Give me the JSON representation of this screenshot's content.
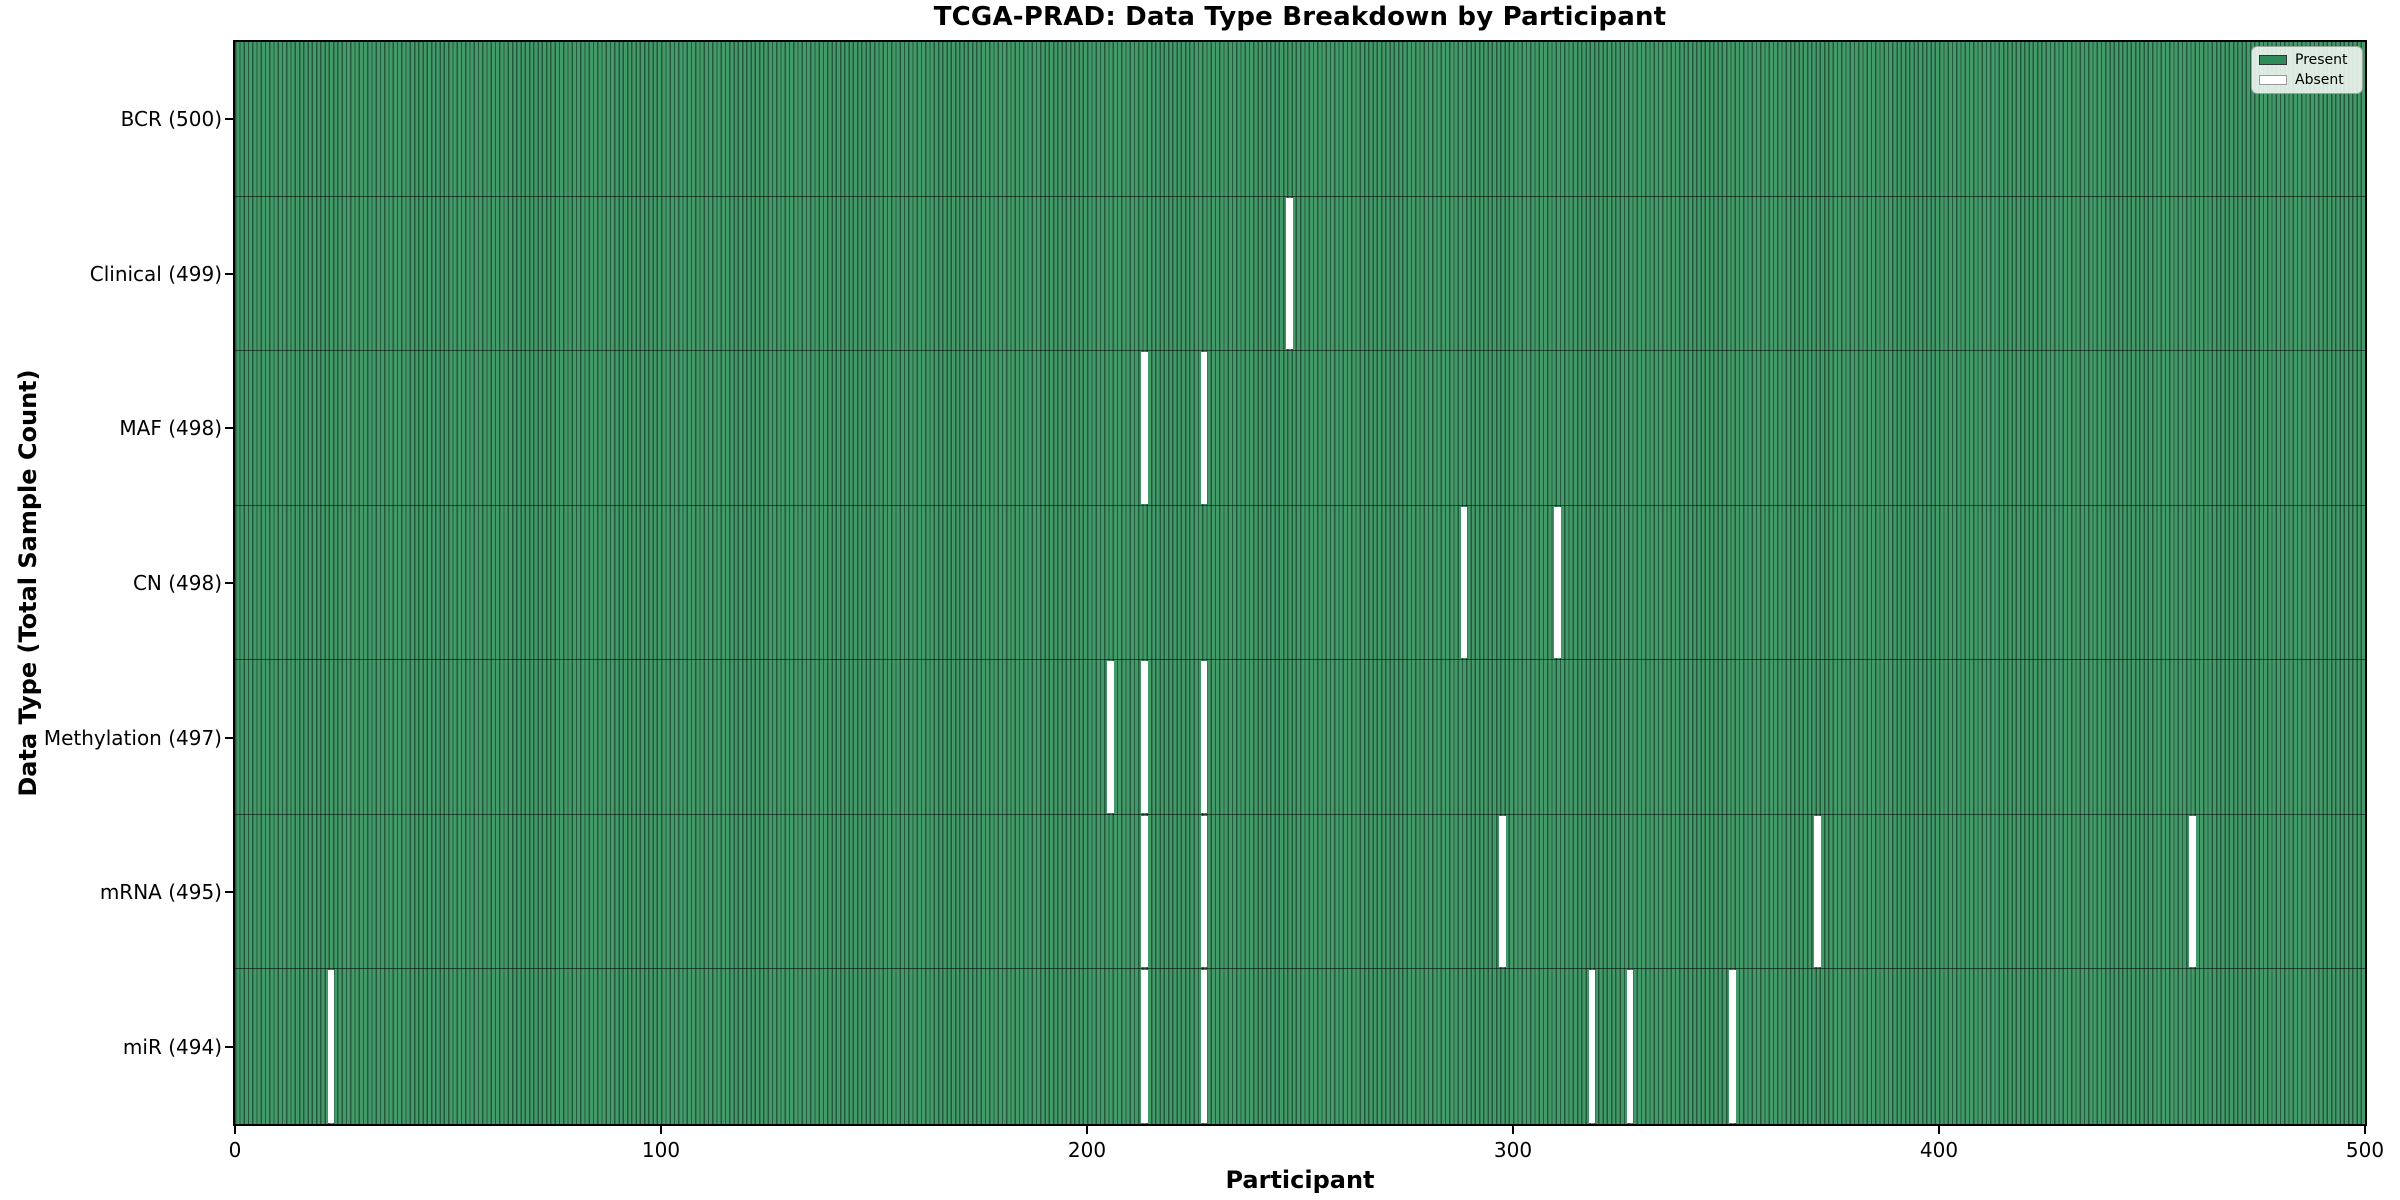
{
  "figure": {
    "title": "TCGA-PRAD: Data Type Breakdown by Participant",
    "xlabel": "Participant",
    "ylabel": "Data Type (Total Sample Count)"
  },
  "legend": {
    "items": [
      {
        "label": "Present",
        "color": "#2e8b57",
        "border": "#333333"
      },
      {
        "label": "Absent",
        "color": "#ffffff",
        "border": "#999999"
      }
    ]
  },
  "chart_data": {
    "type": "heatmap",
    "title": "TCGA-PRAD: Data Type Breakdown by Participant",
    "xlabel": "Participant",
    "ylabel": "Data Type (Total Sample Count)",
    "x_range": [
      0,
      500
    ],
    "x_ticks": [
      0,
      100,
      200,
      300,
      400,
      500
    ],
    "n_participants": 500,
    "legend_position": "upper right",
    "grid": false,
    "colors": {
      "present": "#2e8b57",
      "absent": "#ffffff",
      "bar_stripe_light": "#429a68",
      "bar_stripe_dark": "#25583c",
      "row_divider": "rgba(0,0,0,0.55)"
    },
    "rows": [
      {
        "label": "BCR (500)",
        "data_type": "BCR",
        "total": 500,
        "absent_participants": []
      },
      {
        "label": "Clinical (499)",
        "data_type": "Clinical",
        "total": 499,
        "absent_participants": [
          247
        ]
      },
      {
        "label": "MAF (498)",
        "data_type": "MAF",
        "total": 498,
        "absent_participants": [
          213,
          227
        ]
      },
      {
        "label": "CN (498)",
        "data_type": "CN",
        "total": 498,
        "absent_participants": [
          288,
          310
        ]
      },
      {
        "label": "Methylation (497)",
        "data_type": "Methylation",
        "total": 497,
        "absent_participants": [
          205,
          213,
          227
        ]
      },
      {
        "label": "mRNA (495)",
        "data_type": "mRNA",
        "total": 495,
        "absent_participants": [
          213,
          227,
          297,
          371,
          459
        ]
      },
      {
        "label": "miR (494)",
        "data_type": "miR",
        "total": 494,
        "absent_participants": [
          22,
          213,
          227,
          318,
          327,
          351
        ]
      }
    ]
  }
}
